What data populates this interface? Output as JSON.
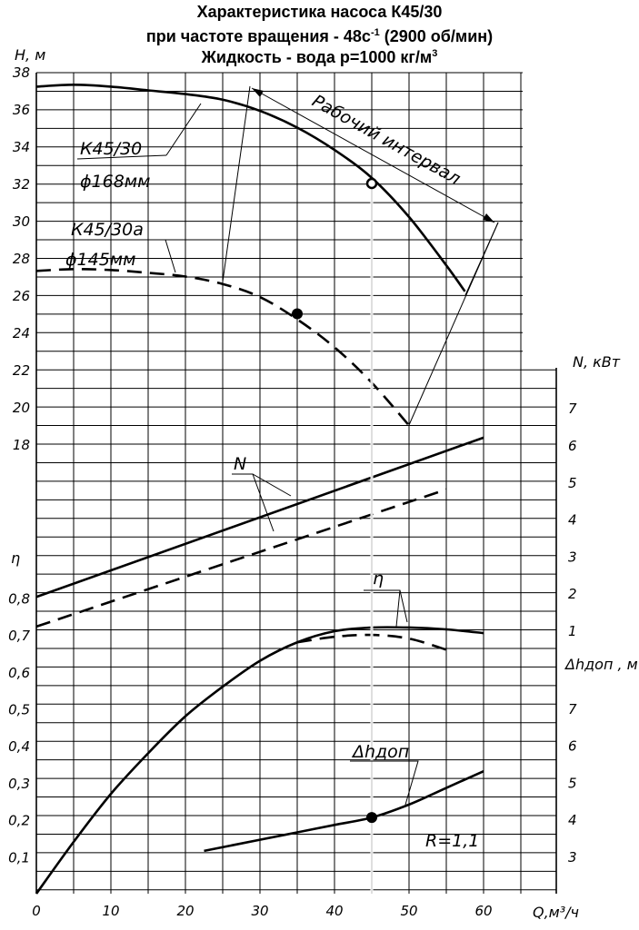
{
  "title": {
    "line1": "Характеристика насоса К45/30",
    "line2_main": "при частоте вращения - 48с",
    "line2_sup": "-1",
    "line2_tail": " (2900 об/мин)",
    "line3_main": "Жидкость - вода р=1000 кг/м",
    "line3_sup": "3"
  },
  "chart_data": {
    "type": "line",
    "x": {
      "label": "Q,м³/ч",
      "range": [
        0,
        62
      ],
      "ticks": [
        "0",
        "10",
        "20",
        "30",
        "40",
        "50",
        "60"
      ]
    },
    "grid": true,
    "axes": {
      "H": {
        "label": "Н, м",
        "ticks": [
          "18",
          "20",
          "22",
          "24",
          "26",
          "28",
          "30",
          "32",
          "34",
          "36",
          "38"
        ]
      },
      "N": {
        "label": "N, кВт",
        "ticks": [
          "1",
          "2",
          "3",
          "4",
          "5",
          "6",
          "7"
        ]
      },
      "eta": {
        "label": "η",
        "ticks": [
          "0,1",
          "0,2",
          "0,3",
          "0,4",
          "0,5",
          "0,6",
          "0,7",
          "0,8"
        ]
      },
      "NPSH": {
        "label": "Δhдоп , м",
        "ticks": [
          "3",
          "4",
          "5",
          "6",
          "7"
        ]
      }
    },
    "series": [
      {
        "id": "H_k45_30",
        "axis": "H",
        "style": "solid",
        "x": [
          0,
          5,
          10,
          15,
          20,
          25,
          30,
          35,
          40,
          45,
          50,
          55,
          57.5
        ],
        "y": [
          37.2,
          37.3,
          37.2,
          37.0,
          36.8,
          36.5,
          35.9,
          35.0,
          33.8,
          32.3,
          30.2,
          27.6,
          26.2
        ]
      },
      {
        "id": "H_k45_30a",
        "axis": "H",
        "style": "dashed",
        "x": [
          0,
          5,
          10,
          15,
          20,
          25,
          30,
          35,
          40,
          45,
          50
        ],
        "y": [
          27.3,
          27.4,
          27.35,
          27.2,
          27.0,
          26.6,
          25.9,
          24.7,
          23.2,
          21.3,
          19.0
        ]
      },
      {
        "id": "N_k45_30",
        "axis": "N",
        "style": "solid",
        "x": [
          0,
          60
        ],
        "y": [
          1.9,
          6.2
        ]
      },
      {
        "id": "N_k45_30a",
        "axis": "N",
        "style": "dashed",
        "x": [
          0,
          55
        ],
        "y": [
          1.1,
          4.8
        ]
      },
      {
        "id": "eta_k45_30",
        "axis": "eta",
        "style": "solid",
        "x": [
          0,
          5,
          10,
          15,
          20,
          25,
          30,
          35,
          40,
          45,
          50,
          55,
          60
        ],
        "y": [
          0.0,
          0.14,
          0.27,
          0.38,
          0.48,
          0.56,
          0.63,
          0.68,
          0.71,
          0.72,
          0.72,
          0.715,
          0.705
        ]
      },
      {
        "id": "eta_k45_30a",
        "axis": "eta",
        "style": "dashed",
        "x": [
          35,
          40,
          45,
          50,
          55
        ],
        "y": [
          0.68,
          0.695,
          0.7,
          0.69,
          0.66
        ]
      },
      {
        "id": "npsh",
        "axis": "NPSH",
        "style": "solid",
        "x": [
          22.5,
          30,
          35,
          40,
          45,
          50,
          55,
          60
        ],
        "y": [
          3.15,
          3.45,
          3.65,
          3.85,
          4.05,
          4.4,
          4.85,
          5.3
        ]
      }
    ],
    "points": [
      {
        "x": 45,
        "y": 32,
        "axis": "H",
        "style": "open"
      },
      {
        "x": 35,
        "y": 25,
        "axis": "H",
        "style": "filled"
      },
      {
        "x": 45,
        "y": 4.05,
        "axis": "NPSH",
        "style": "filled"
      }
    ],
    "operating_vertical_x": 45,
    "annotations": {
      "curve_k45_30_name": "К45/30",
      "curve_k45_30_diam": "ϕ168мм",
      "curve_k45_30a_name": "К45/30а",
      "curve_k45_30a_diam": "ϕ145мм",
      "working_interval": "Рабочий интервал",
      "N_label": "N",
      "eta_label": "η",
      "npsh_label": "Δhдоп",
      "R_label": "R=1,1"
    }
  }
}
